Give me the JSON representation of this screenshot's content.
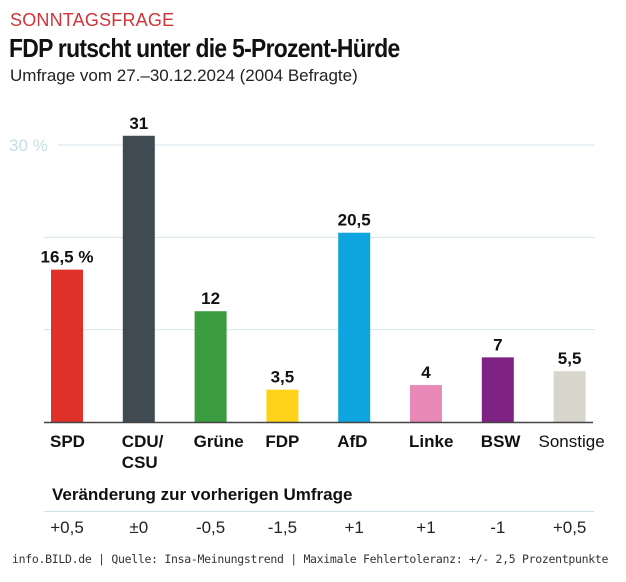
{
  "header": {
    "kicker": "SONNTAGSFRAGE",
    "title": "FDP rutscht unter die 5-Prozent-Hürde",
    "subtitle": "Umfrage vom 27.–30.12.2024 (2004 Befragte)"
  },
  "chart_data": {
    "type": "bar",
    "title": "FDP rutscht unter die 5-Prozent-Hürde",
    "subtitle": "Umfrage vom 27.–30.12.2024 (2004 Befragte)",
    "xlabel": "",
    "ylabel": "",
    "ylim": [
      0,
      30
    ],
    "y_tick_labels": [
      {
        "value": 30,
        "label": "30 %"
      }
    ],
    "gridlines": [
      10,
      20,
      30
    ],
    "grid": true,
    "legend": "none",
    "categories": [
      "SPD",
      "CDU/\nCSU",
      "Grüne",
      "FDP",
      "AfD",
      "Linke",
      "BSW",
      "Sonstige"
    ],
    "category_lines": [
      [
        "SPD"
      ],
      [
        "CDU/",
        "CSU"
      ],
      [
        "Grüne"
      ],
      [
        "FDP"
      ],
      [
        "AfD"
      ],
      [
        "Linke"
      ],
      [
        "BSW"
      ],
      [
        "Sonstige"
      ]
    ],
    "category_bold": [
      true,
      true,
      true,
      true,
      true,
      true,
      true,
      false
    ],
    "values": [
      16.5,
      31,
      12,
      3.5,
      20.5,
      4,
      7,
      5.5
    ],
    "value_labels": [
      "16,5 %",
      "31",
      "12",
      "3,5",
      "20,5",
      "4",
      "7",
      "5,5"
    ],
    "colors": [
      "#e0302a",
      "#3f4a52",
      "#3a9c3f",
      "#ffd21a",
      "#0ea4e0",
      "#e889b8",
      "#7d2283",
      "#d7d5cc"
    ],
    "changes_title": "Veränderung zur vorherigen Umfrage",
    "changes": [
      "+0,5",
      "±0",
      "-0,5",
      "-1,5",
      "+1",
      "+1",
      "-1",
      "+0,5"
    ]
  },
  "footer": {
    "text": "info.BILD.de | Quelle: Insa-Meinungstrend | Maximale Fehlertoleranz: +/- 2,5 Prozentpunkte"
  }
}
